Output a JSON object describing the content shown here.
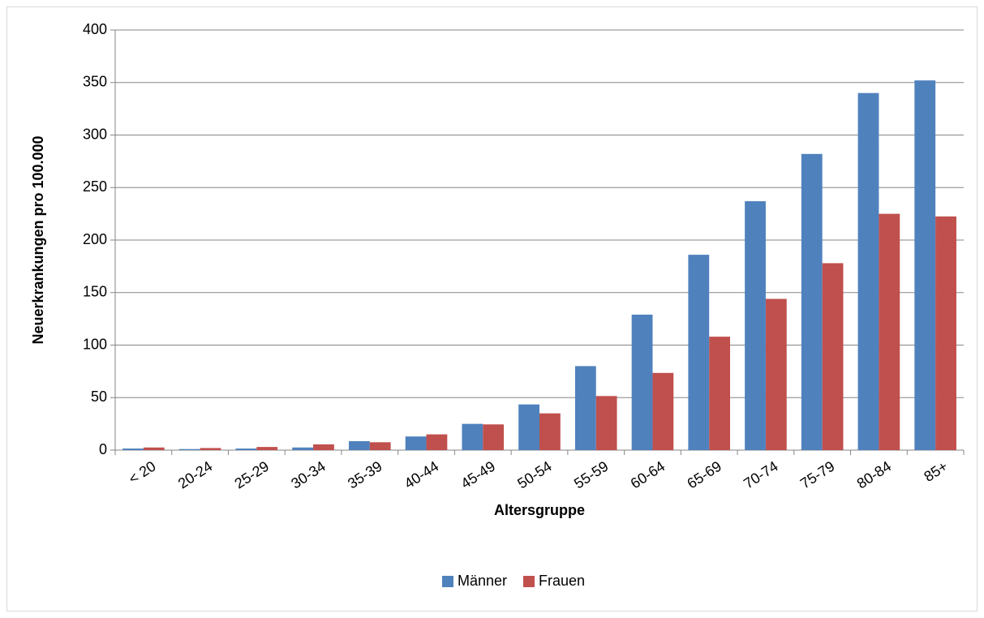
{
  "chart_data": {
    "type": "bar",
    "x_label": "Altersgruppe",
    "y_label": "Neuerkrankungen pro 100.000",
    "categories": [
      "< 20",
      "20-24",
      "25-29",
      "30-34",
      "35-39",
      "40-44",
      "45-49",
      "50-54",
      "55-59",
      "60-64",
      "65-69",
      "70-74",
      "75-79",
      "80-84",
      "85+"
    ],
    "series": [
      {
        "name": "Männer",
        "color": "#4f81bd",
        "values": [
          1.5,
          1,
          1.5,
          2.5,
          8.5,
          13,
          25,
          43.5,
          80,
          129,
          186,
          237,
          282,
          340,
          352
        ]
      },
      {
        "name": "Frauen",
        "color": "#c0504d",
        "values": [
          2.5,
          2,
          3,
          5.5,
          7.5,
          15,
          24.5,
          35,
          51.5,
          73.5,
          108,
          144,
          178,
          225,
          222.5
        ]
      }
    ],
    "ylim": [
      0,
      400
    ],
    "yticks": [
      0,
      50,
      100,
      150,
      200,
      250,
      300,
      350,
      400
    ],
    "grid": true,
    "legend": "bottom"
  }
}
